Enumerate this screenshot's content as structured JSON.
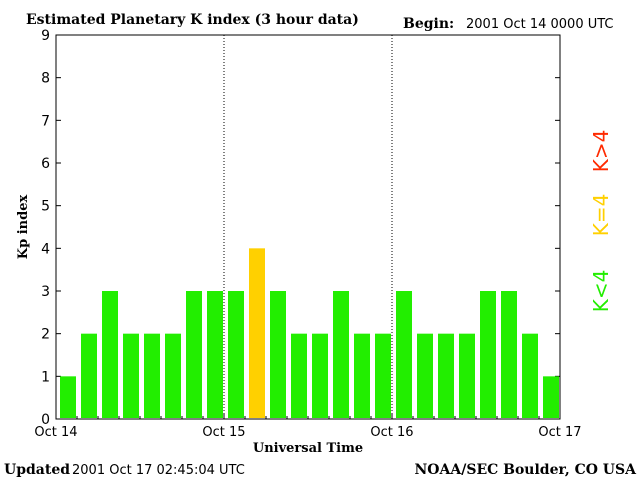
{
  "header": {
    "title": "Estimated Planetary K index (3 hour data)",
    "begin_label": "Begin:",
    "begin_value": "2001 Oct 14 0000 UTC"
  },
  "footer": {
    "updated_label": "Updated",
    "updated_value": "2001 Oct 17 02:45:04 UTC",
    "credit": "NOAA/SEC Boulder, CO USA"
  },
  "legend": {
    "high": {
      "label": "K>4",
      "color": "#ff2a00"
    },
    "mid": {
      "label": "K=4",
      "color": "#ffd000"
    },
    "low": {
      "label": "K<4",
      "color": "#22ee00"
    }
  },
  "chart_data": {
    "type": "bar",
    "title": "Estimated Planetary K index (3 hour data)",
    "xlabel": "Universal Time",
    "ylabel": "Kp index",
    "ylim": [
      0,
      9
    ],
    "yticks": [
      "0",
      "1",
      "2",
      "3",
      "4",
      "5",
      "6",
      "7",
      "8",
      "9"
    ],
    "xticks": [
      "Oct 14",
      "Oct 15",
      "Oct 16",
      "Oct 17"
    ],
    "day_separators": [
      "Oct 15",
      "Oct 16"
    ],
    "bin_hours": 3,
    "values": [
      1,
      2,
      3,
      2,
      2,
      2,
      3,
      3,
      3,
      4,
      3,
      2,
      2,
      3,
      2,
      2,
      3,
      2,
      2,
      2,
      3,
      3,
      2,
      1
    ],
    "colors": {
      "below_4": "#22ee00",
      "equal_4": "#ffd000",
      "above_4": "#ff2a00"
    }
  }
}
